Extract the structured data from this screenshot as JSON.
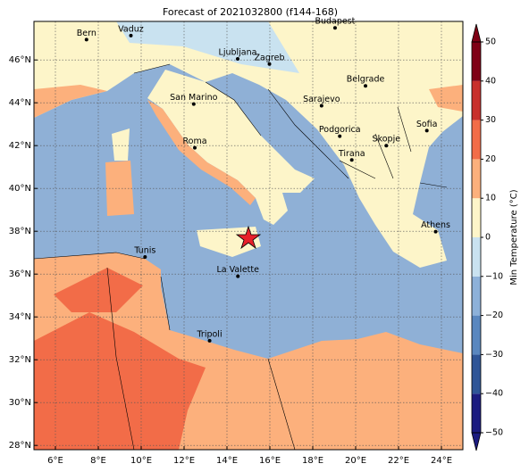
{
  "title": "Forecast of 2021032800 (f144-168)",
  "map": {
    "xlim": [
      5,
      25
    ],
    "ylim": [
      27.8,
      47.8
    ],
    "xticks": [
      {
        "value": 6,
        "label": "6°E"
      },
      {
        "value": 8,
        "label": "8°E"
      },
      {
        "value": 10,
        "label": "10°E"
      },
      {
        "value": 12,
        "label": "12°E"
      },
      {
        "value": 14,
        "label": "14°E"
      },
      {
        "value": 16,
        "label": "16°E"
      },
      {
        "value": 18,
        "label": "18°E"
      },
      {
        "value": 20,
        "label": "20°E"
      },
      {
        "value": 22,
        "label": "22°E"
      },
      {
        "value": 24,
        "label": "24°E"
      }
    ],
    "yticks": [
      {
        "value": 28,
        "label": "28°N"
      },
      {
        "value": 30,
        "label": "30°N"
      },
      {
        "value": 32,
        "label": "32°N"
      },
      {
        "value": 34,
        "label": "34°N"
      },
      {
        "value": 36,
        "label": "36°N"
      },
      {
        "value": 38,
        "label": "38°N"
      },
      {
        "value": 40,
        "label": "40°N"
      },
      {
        "value": 42,
        "label": "42°N"
      },
      {
        "value": 44,
        "label": "44°N"
      },
      {
        "value": 46,
        "label": "46°N"
      }
    ],
    "grid": true,
    "cities": [
      {
        "name": "Bern",
        "lon": 7.45,
        "lat": 46.95
      },
      {
        "name": "Vaduz",
        "lon": 9.52,
        "lat": 47.14
      },
      {
        "name": "Budapest",
        "lon": 19.04,
        "lat": 47.5
      },
      {
        "name": "Ljubljana",
        "lon": 14.5,
        "lat": 46.05
      },
      {
        "name": "Zagreb",
        "lon": 15.98,
        "lat": 45.81
      },
      {
        "name": "Belgrade",
        "lon": 20.46,
        "lat": 44.79
      },
      {
        "name": "San Marino",
        "lon": 12.45,
        "lat": 43.94
      },
      {
        "name": "Sarajevo",
        "lon": 18.41,
        "lat": 43.86
      },
      {
        "name": "Sofia",
        "lon": 23.32,
        "lat": 42.7
      },
      {
        "name": "Roma",
        "lon": 12.5,
        "lat": 41.9
      },
      {
        "name": "Podgorica",
        "lon": 19.26,
        "lat": 42.44
      },
      {
        "name": "Skopje",
        "lon": 21.43,
        "lat": 42.0
      },
      {
        "name": "Tirana",
        "lon": 19.82,
        "lat": 41.33
      },
      {
        "name": "Athens",
        "lon": 23.73,
        "lat": 37.98
      },
      {
        "name": "Tunis",
        "lon": 10.18,
        "lat": 36.8
      },
      {
        "name": "La Valette",
        "lon": 14.51,
        "lat": 35.9
      },
      {
        "name": "Tripoli",
        "lon": 13.19,
        "lat": 32.89
      }
    ]
  },
  "colorbar": {
    "label": "Min Temperature (°C)",
    "lim": [
      -50,
      50
    ],
    "levels": [
      -50,
      -40,
      -30,
      -20,
      -10,
      0,
      10,
      20,
      30,
      40,
      50
    ],
    "colors": [
      "#1c1c80",
      "#2f5597",
      "#5a87bf",
      "#8db1d9",
      "#c9e2f0",
      "#fdf5c9",
      "#fcb07c",
      "#f26c48",
      "#c8302c",
      "#7f0015"
    ],
    "ticks": [
      {
        "value": -50,
        "label": "−50"
      },
      {
        "value": -40,
        "label": "−40"
      },
      {
        "value": -30,
        "label": "−30"
      },
      {
        "value": -20,
        "label": "−20"
      },
      {
        "value": -10,
        "label": "−10"
      },
      0,
      10,
      20,
      30,
      40,
      50
    ]
  }
}
